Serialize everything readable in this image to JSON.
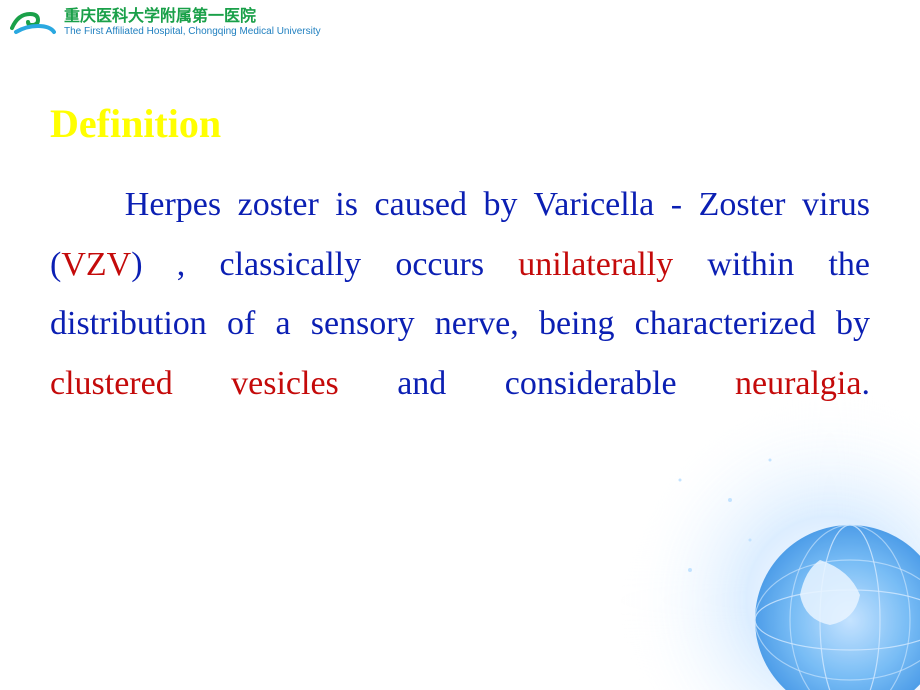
{
  "header": {
    "cn": "重庆医科大学附属第一医院",
    "en": "The First Affiliated Hospital, Chongqing Medical  University",
    "cn_color": "#1aa049",
    "en_color": "#1f7fbf",
    "cn_fontsize": 16,
    "en_fontsize": 10,
    "logo_colors": {
      "head": "#1aa049",
      "body": "#2aa8e0"
    }
  },
  "slide": {
    "title": "Definition",
    "title_color": "#ffff00",
    "title_fontsize": 40,
    "body_fontsize": 34,
    "line_height": 1.75,
    "base_color": "#0b1fb3",
    "highlight_color": "#c40a0a",
    "segments": [
      {
        "text": "Herpes zoster is caused by Varicella - Zoster  virus (",
        "hl": false
      },
      {
        "text": "VZV",
        "hl": true
      },
      {
        "text": ") , classically occurs ",
        "hl": false
      },
      {
        "text": "unilaterally",
        "hl": true
      },
      {
        "text": " within the distribution of a  sensory  nerve, being characterized by ",
        "hl": false
      },
      {
        "text": "clustered vesicles",
        "hl": true
      },
      {
        "text": " and considerable ",
        "hl": false
      },
      {
        "text": "neuralgia",
        "hl": true
      },
      {
        "text": ".",
        "hl": false
      }
    ]
  },
  "background": {
    "globe_colors": [
      "#d9ecff",
      "#a8d5ff",
      "#6cb7f5",
      "#3b93e6"
    ],
    "glow_color": "#eaf4ff"
  }
}
